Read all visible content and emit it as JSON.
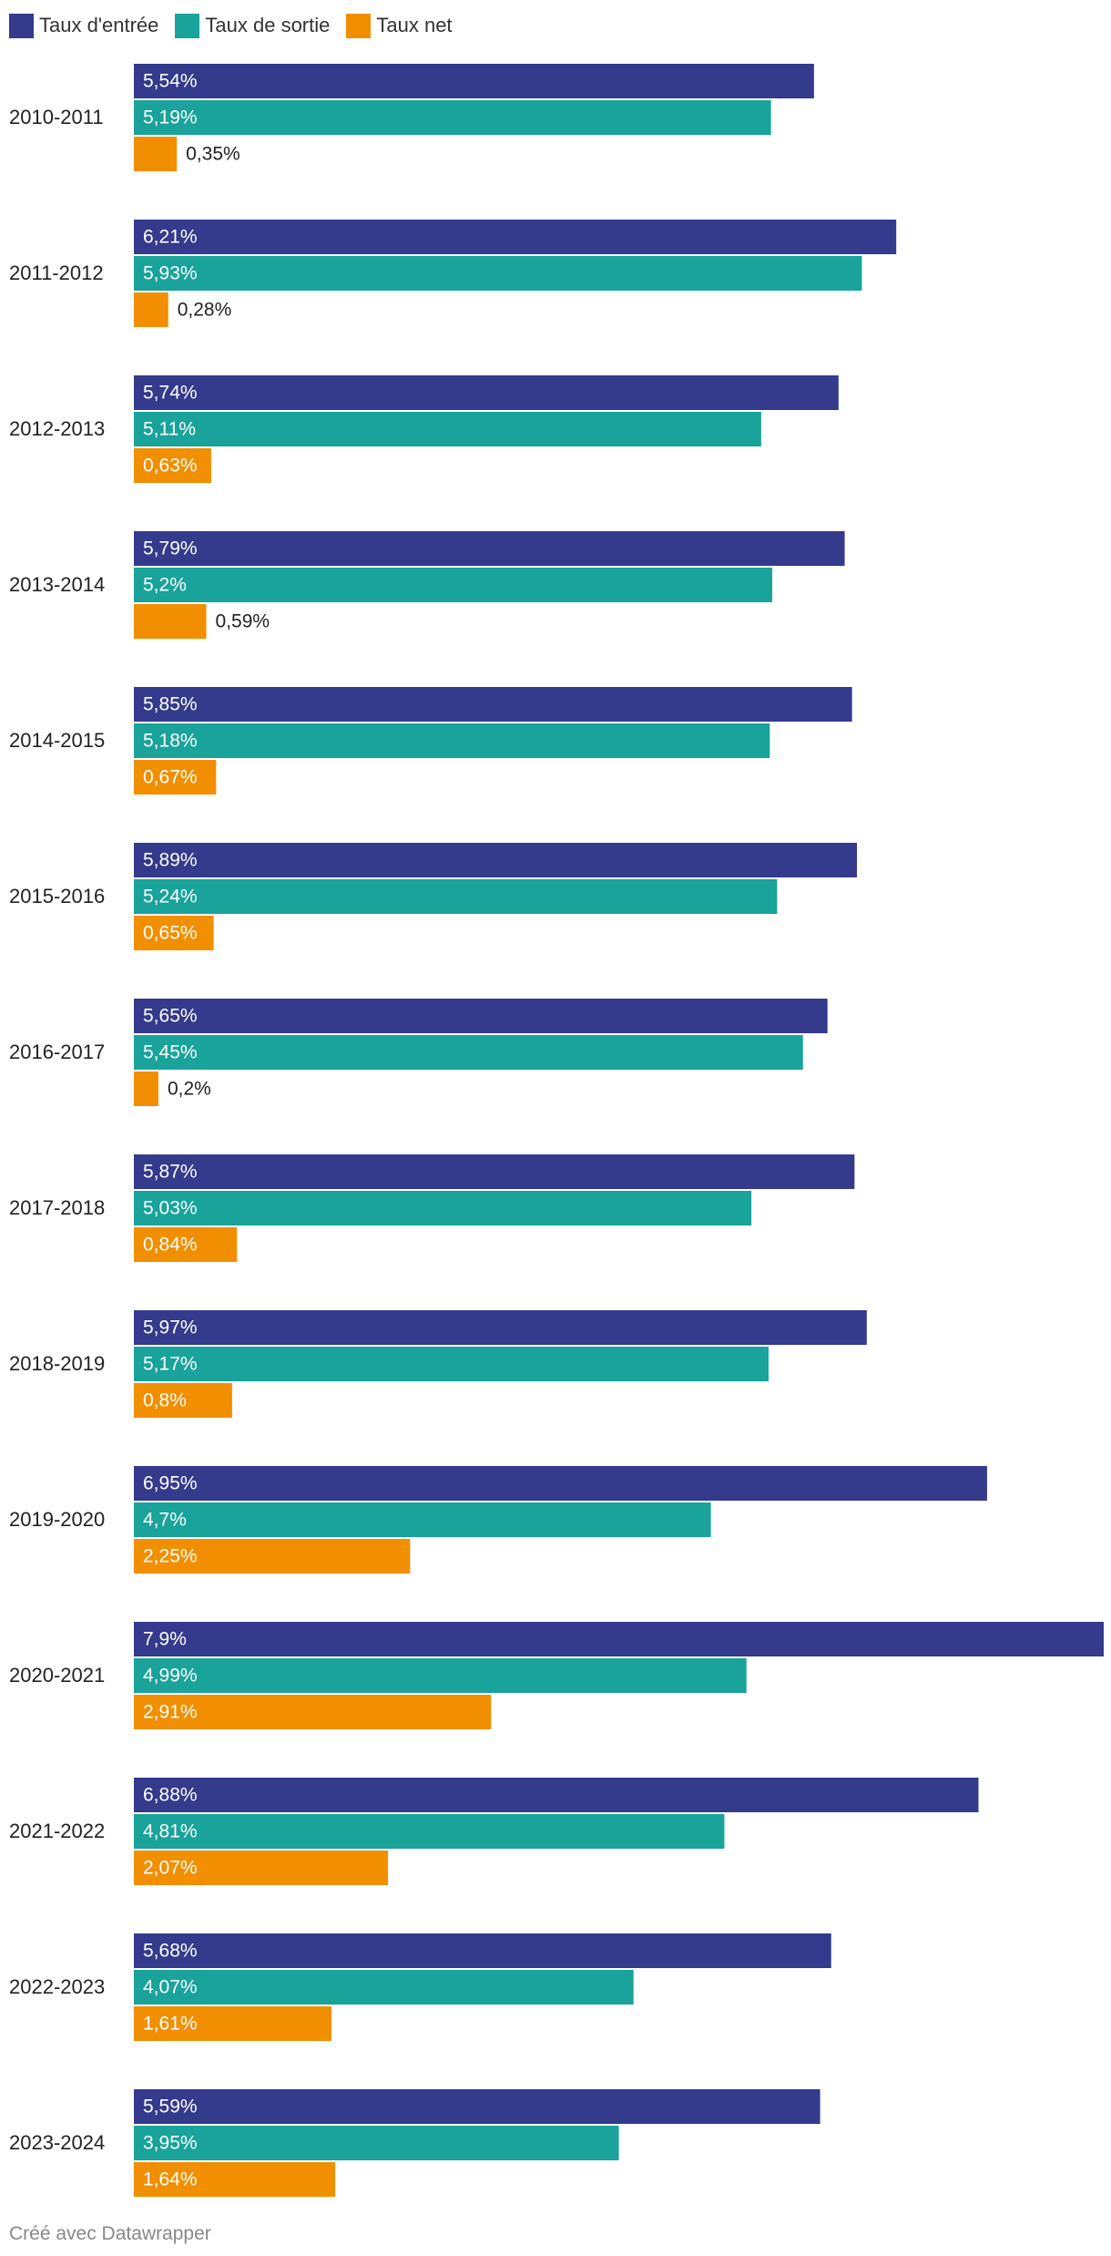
{
  "chart_data": {
    "type": "bar",
    "orientation": "horizontal",
    "title": "",
    "xlabel": "",
    "ylabel": "",
    "xlim": [
      0,
      7.9
    ],
    "grid": false,
    "legend": "top-left",
    "value_suffix": "%",
    "categories": [
      "2010-2011",
      "2011-2012",
      "2012-2013",
      "2013-2014",
      "2014-2015",
      "2015-2016",
      "2016-2017",
      "2017-2018",
      "2018-2019",
      "2019-2020",
      "2020-2021",
      "2021-2022",
      "2022-2023",
      "2023-2024"
    ],
    "series": [
      {
        "name": "Taux d'entrée",
        "color": "#343a8c",
        "values": [
          5.54,
          6.21,
          5.74,
          5.79,
          5.85,
          5.89,
          5.65,
          5.87,
          5.97,
          6.95,
          7.9,
          6.88,
          5.68,
          5.59
        ],
        "labels": [
          "5,54%",
          "6,21%",
          "5,74%",
          "5,79%",
          "5,85%",
          "5,89%",
          "5,65%",
          "5,87%",
          "5,97%",
          "6,95%",
          "7,9%",
          "6,88%",
          "5,68%",
          "5,59%"
        ]
      },
      {
        "name": "Taux de sortie",
        "color": "#19a39b",
        "values": [
          5.19,
          5.93,
          5.11,
          5.2,
          5.18,
          5.24,
          5.45,
          5.03,
          5.17,
          4.7,
          4.99,
          4.81,
          4.07,
          3.95
        ],
        "labels": [
          "5,19%",
          "5,93%",
          "5,11%",
          "5,2%",
          "5,18%",
          "5,24%",
          "5,45%",
          "5,03%",
          "5,17%",
          "4,7%",
          "4,99%",
          "4,81%",
          "4,07%",
          "3,95%"
        ]
      },
      {
        "name": "Taux net",
        "color": "#f18f01",
        "values": [
          0.35,
          0.28,
          0.63,
          0.59,
          0.67,
          0.65,
          0.2,
          0.84,
          0.8,
          2.25,
          2.91,
          2.07,
          1.61,
          1.64
        ],
        "labels": [
          "0,35%",
          "0,28%",
          "0,63%",
          "0,59%",
          "0,67%",
          "0,65%",
          "0,2%",
          "0,84%",
          "0,8%",
          "2,25%",
          "2,91%",
          "2,07%",
          "1,61%",
          "1,64%"
        ]
      }
    ]
  },
  "footer": {
    "credit": "Créé avec Datawrapper"
  }
}
